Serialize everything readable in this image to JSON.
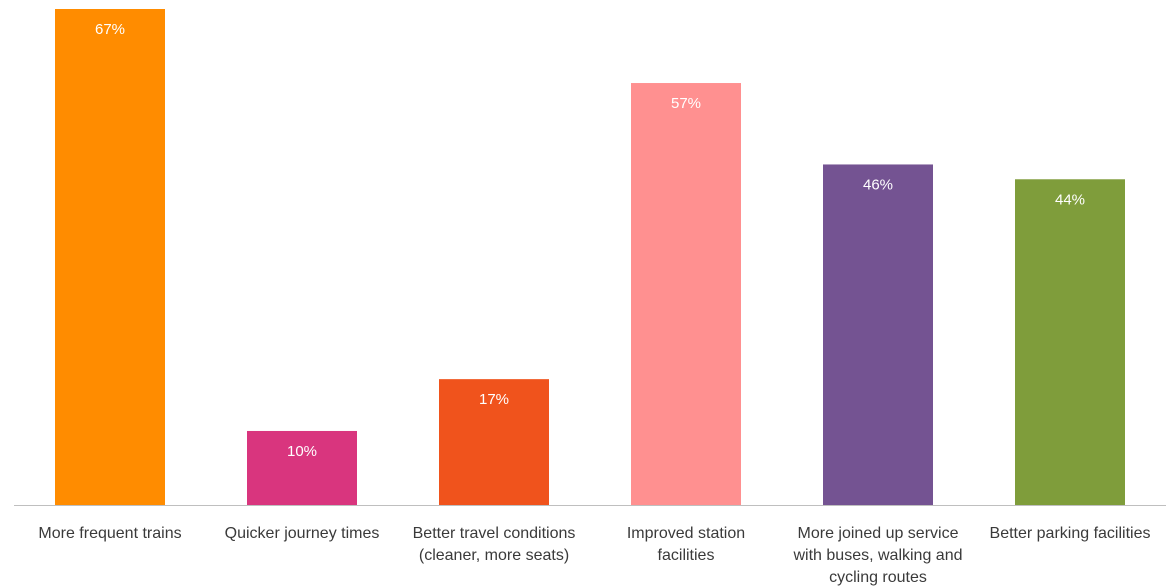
{
  "chart_data": {
    "type": "bar",
    "title": "",
    "xlabel": "",
    "ylabel": "",
    "ylim": [
      0,
      67
    ],
    "grid": false,
    "legend": "none",
    "categories": [
      [
        "More frequent trains"
      ],
      [
        "Quicker journey times"
      ],
      [
        "Better travel conditions",
        "(cleaner, more seats)"
      ],
      [
        "Improved station",
        "facilities"
      ],
      [
        "More joined up service",
        "with buses, walking and",
        "cycling routes"
      ],
      [
        "Better parking facilities"
      ]
    ],
    "values": [
      67,
      10,
      17,
      57,
      46,
      44
    ],
    "labels": [
      "67%",
      "10%",
      "17%",
      "57%",
      "46%",
      "44%"
    ],
    "colors": [
      "#FF8C00",
      "#D9357E",
      "#F0531C",
      "#FF9090",
      "#745392",
      "#7F9D3B"
    ],
    "axis_color": "#BFBFBF"
  }
}
